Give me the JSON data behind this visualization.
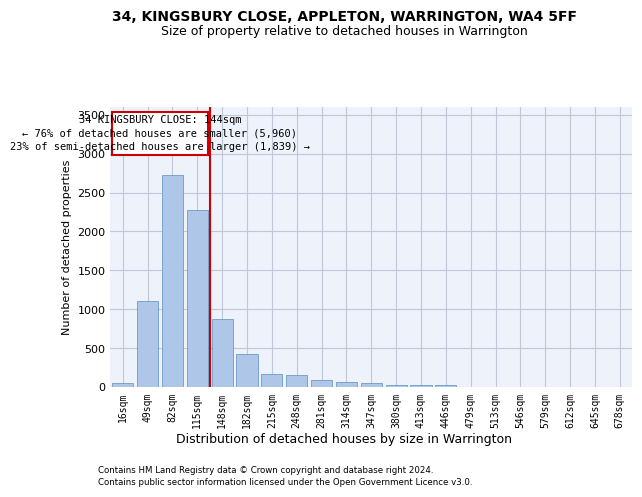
{
  "title1": "34, KINGSBURY CLOSE, APPLETON, WARRINGTON, WA4 5FF",
  "title2": "Size of property relative to detached houses in Warrington",
  "xlabel": "Distribution of detached houses by size in Warrington",
  "ylabel": "Number of detached properties",
  "footnote1": "Contains HM Land Registry data © Crown copyright and database right 2024.",
  "footnote2": "Contains public sector information licensed under the Open Government Licence v3.0.",
  "annotation_line1": "34 KINGSBURY CLOSE: 144sqm",
  "annotation_line2": "← 76% of detached houses are smaller (5,960)",
  "annotation_line3": "23% of semi-detached houses are larger (1,839) →",
  "bar_categories": [
    "16sqm",
    "49sqm",
    "82sqm",
    "115sqm",
    "148sqm",
    "182sqm",
    "215sqm",
    "248sqm",
    "281sqm",
    "314sqm",
    "347sqm",
    "380sqm",
    "413sqm",
    "446sqm",
    "479sqm",
    "513sqm",
    "546sqm",
    "579sqm",
    "612sqm",
    "645sqm",
    "678sqm"
  ],
  "bar_values": [
    55,
    1100,
    2730,
    2280,
    880,
    420,
    165,
    160,
    90,
    60,
    55,
    30,
    20,
    20,
    0,
    0,
    0,
    0,
    0,
    0,
    0
  ],
  "bar_color": "#aec6e8",
  "bar_edge_color": "#5a8fc0",
  "marker_color": "#cc0000",
  "ylim": [
    0,
    3600
  ],
  "yticks": [
    0,
    500,
    1000,
    1500,
    2000,
    2500,
    3000,
    3500
  ],
  "bg_color": "#eef2fb",
  "grid_color": "#c0c8d8"
}
